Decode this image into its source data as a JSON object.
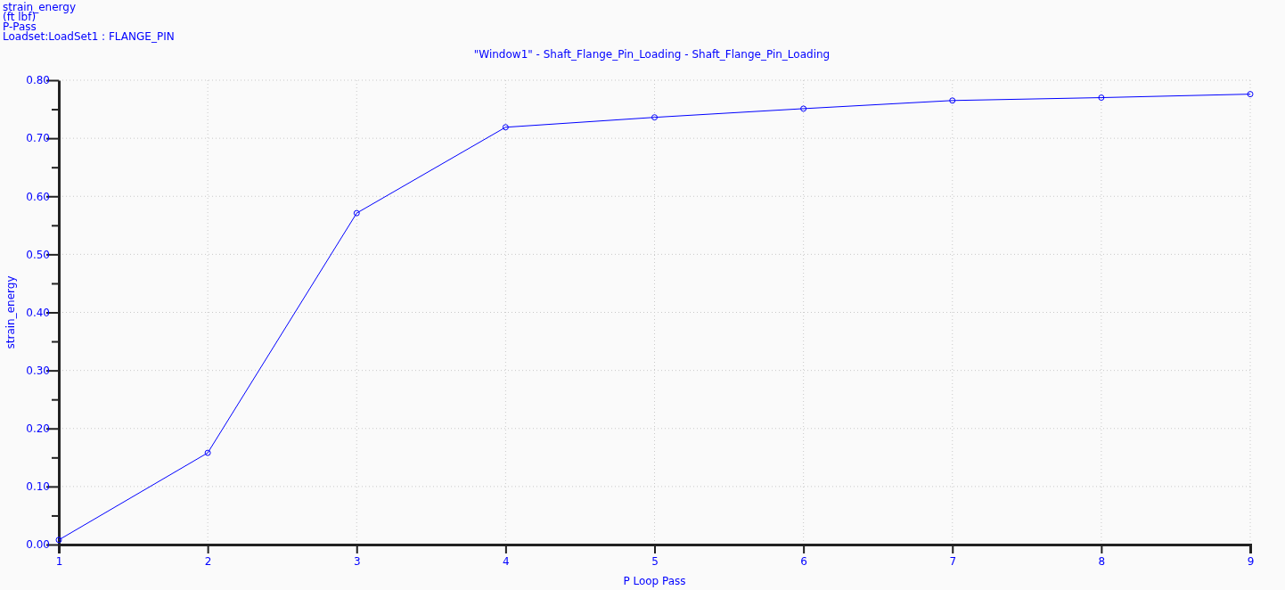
{
  "chart_data": {
    "type": "line",
    "title": "\"Window1\" - Shaft_Flange_Pin_Loading - Shaft_Flange_Pin_Loading",
    "xlabel": "P Loop Pass",
    "ylabel": "strain_energy",
    "annotations": [
      "strain_energy",
      "(ft lbf)",
      "P-Pass",
      "Loadset:LoadSet1 :  FLANGE_PIN"
    ],
    "x": [
      1,
      2,
      3,
      4,
      5,
      6,
      7,
      8,
      9
    ],
    "series": [
      {
        "color": "#0000ff",
        "values": [
          0.008,
          0.158,
          0.571,
          0.719,
          0.736,
          0.751,
          0.765,
          0.77,
          0.776
        ]
      }
    ],
    "xlim": [
      1,
      9
    ],
    "xticks": [
      1,
      2,
      3,
      4,
      5,
      6,
      7,
      8,
      9
    ],
    "ylim": [
      0,
      0.8
    ],
    "yticks": [
      {
        "value": 0,
        "label": "0.00"
      },
      {
        "value": 0.05,
        "label": null
      },
      {
        "value": 0.1,
        "label": "0.10"
      },
      {
        "value": 0.15,
        "label": null
      },
      {
        "value": 0.2,
        "label": "0.20"
      },
      {
        "value": 0.25,
        "label": null
      },
      {
        "value": 0.3,
        "label": "0.30"
      },
      {
        "value": 0.35,
        "label": null
      },
      {
        "value": 0.4,
        "label": "0.40"
      },
      {
        "value": 0.45,
        "label": null
      },
      {
        "value": 0.5,
        "label": "0.50"
      },
      {
        "value": 0.55,
        "label": null
      },
      {
        "value": 0.6,
        "label": "0.60"
      },
      {
        "value": 0.65,
        "label": null
      },
      {
        "value": 0.7,
        "label": "0.70"
      },
      {
        "value": 0.75,
        "label": null
      },
      {
        "value": 0.8,
        "label": "0.80"
      }
    ],
    "grid": true,
    "marker": "circle",
    "line_style": "solid"
  }
}
